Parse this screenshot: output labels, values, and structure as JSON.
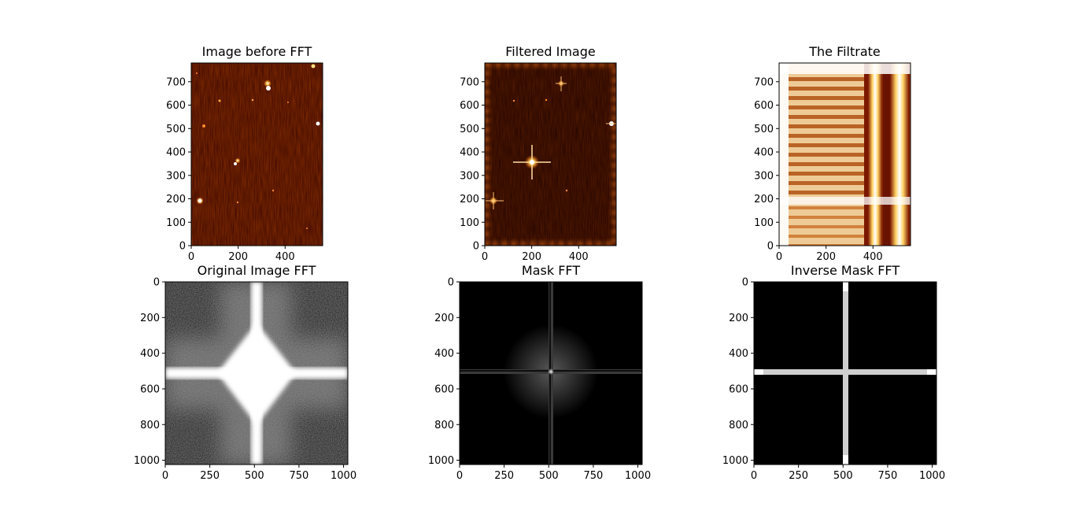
{
  "chart_data": [
    {
      "type": "heatmap",
      "title": "Image before FFT",
      "colormap": "afmhot",
      "xticks": [
        0,
        200,
        400
      ],
      "yticks": [
        0,
        100,
        200,
        300,
        400,
        500,
        600,
        700
      ],
      "xlim": [
        0,
        560
      ],
      "ylim": [
        0,
        780
      ],
      "y_origin": "lower",
      "content": "dark red noise field with scattered bright point sources"
    },
    {
      "type": "heatmap",
      "title": "Filtered Image",
      "colormap": "afmhot",
      "xticks": [
        0,
        200,
        400
      ],
      "yticks": [
        0,
        100,
        200,
        300,
        400,
        500,
        600,
        700
      ],
      "xlim": [
        0,
        560
      ],
      "ylim": [
        0,
        780
      ],
      "y_origin": "lower",
      "content": "dark field with bright cross-shaped stars and a bright ringing border"
    },
    {
      "type": "heatmap",
      "title": "The Filtrate",
      "colormap": "afmhot",
      "xticks": [
        0,
        200,
        400
      ],
      "yticks": [
        0,
        100,
        200,
        300,
        400,
        500,
        600,
        700
      ],
      "xlim": [
        0,
        560
      ],
      "ylim": [
        0,
        780
      ],
      "y_origin": "lower",
      "content": "bright horizontal stripes on the left, vertical bright bands on the right"
    },
    {
      "type": "heatmap",
      "title": "Original Image FFT",
      "colormap": "gray",
      "xticks": [
        0,
        250,
        500,
        750,
        1000
      ],
      "yticks": [
        0,
        200,
        400,
        600,
        800,
        1000
      ],
      "xlim": [
        0,
        1024
      ],
      "ylim": [
        0,
        1024
      ],
      "y_origin": "upper",
      "content": "grey noisy spectrum with bright central cross and bright diamond core"
    },
    {
      "type": "heatmap",
      "title": "Mask FFT",
      "colormap": "gray",
      "xticks": [
        0,
        250,
        500,
        750,
        1000
      ],
      "yticks": [
        0,
        200,
        400,
        600,
        800,
        1000
      ],
      "xlim": [
        0,
        1024
      ],
      "ylim": [
        0,
        1024
      ],
      "y_origin": "upper",
      "content": "black field with faint central cross and small bright center"
    },
    {
      "type": "heatmap",
      "title": "Inverse Mask FFT",
      "colormap": "gray",
      "xticks": [
        0,
        250,
        500,
        750,
        1000
      ],
      "yticks": [
        0,
        200,
        400,
        600,
        800,
        1000
      ],
      "xlim": [
        0,
        1024
      ],
      "ylim": [
        0,
        1024
      ],
      "y_origin": "upper",
      "content": "black field with thin bright central cross"
    }
  ]
}
